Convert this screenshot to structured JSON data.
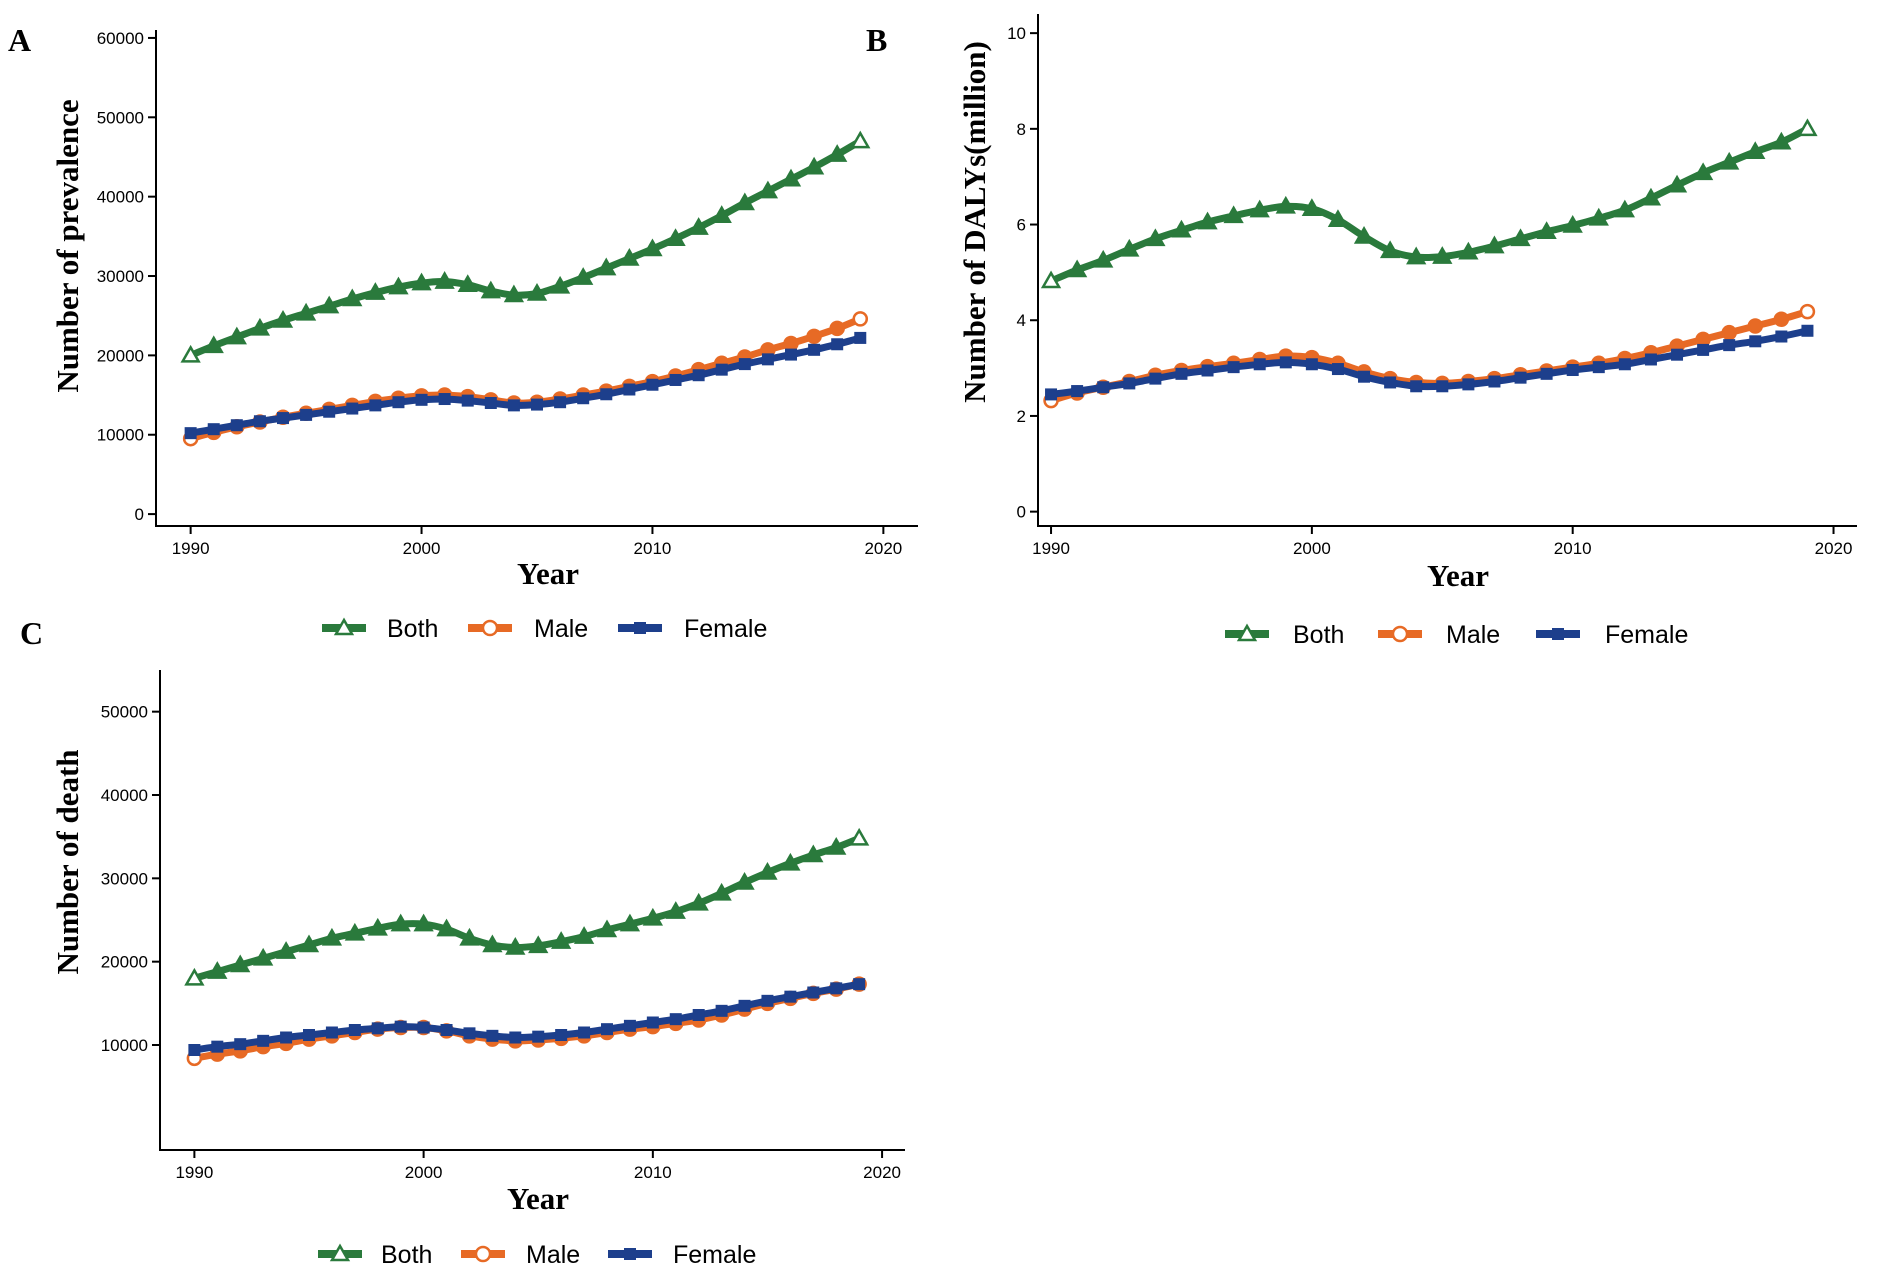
{
  "colors": {
    "both": "#2a7a3c",
    "male": "#e76a25",
    "female": "#1d3f8c"
  },
  "legend": {
    "both": "Both",
    "male": "Male",
    "female": "Female"
  },
  "chart_data": [
    {
      "panel": "A",
      "type": "line",
      "xlabel": "Year",
      "ylabel": "Number of prevalence",
      "xlim": [
        1988.5,
        2021.5
      ],
      "ylim": [
        -1500,
        61000
      ],
      "xticks": [
        1990,
        2000,
        2010,
        2020
      ],
      "xtick_labels": [
        "1990",
        "2000",
        "2010",
        "2020"
      ],
      "yticks": [
        0,
        10000,
        20000,
        30000,
        40000,
        50000,
        60000
      ],
      "ytick_labels": [
        "0",
        "10000",
        "20000",
        "30000",
        "40000",
        "50000",
        "60000"
      ],
      "x": [
        1990,
        1991,
        1992,
        1993,
        1994,
        1995,
        1996,
        1997,
        1998,
        1999,
        2000,
        2001,
        2002,
        2003,
        2004,
        2005,
        2006,
        2007,
        2008,
        2009,
        2010,
        2011,
        2012,
        2013,
        2014,
        2015,
        2016,
        2017,
        2018,
        2019
      ],
      "series": [
        {
          "key": "both",
          "name": "Both",
          "marker": "triangle",
          "values": [
            20000,
            21200,
            22300,
            23400,
            24400,
            25300,
            26200,
            27100,
            27900,
            28600,
            29100,
            29300,
            28900,
            28100,
            27600,
            27800,
            28700,
            29800,
            31000,
            32200,
            33400,
            34700,
            36100,
            37600,
            39200,
            40700,
            42200,
            43700,
            45300,
            47000
          ]
        },
        {
          "key": "male",
          "name": "Male",
          "marker": "circle",
          "values": [
            9500,
            10300,
            11000,
            11600,
            12200,
            12700,
            13200,
            13700,
            14200,
            14600,
            14900,
            15000,
            14800,
            14400,
            14000,
            14100,
            14500,
            15000,
            15500,
            16100,
            16700,
            17400,
            18200,
            19000,
            19800,
            20700,
            21500,
            22400,
            23400,
            24600
          ]
        },
        {
          "key": "female",
          "name": "Female",
          "marker": "square",
          "values": [
            10200,
            10700,
            11200,
            11700,
            12100,
            12500,
            12900,
            13300,
            13700,
            14100,
            14400,
            14500,
            14300,
            14000,
            13700,
            13800,
            14100,
            14600,
            15100,
            15700,
            16300,
            16900,
            17500,
            18200,
            18900,
            19500,
            20100,
            20700,
            21400,
            22200
          ]
        }
      ]
    },
    {
      "panel": "B",
      "type": "line",
      "xlabel": "Year",
      "ylabel": "Number of DALYs(million)",
      "xlim": [
        1989.5,
        2020.9
      ],
      "ylim": [
        -0.3,
        10.4
      ],
      "xticks": [
        1990,
        2000,
        2010,
        2020
      ],
      "xtick_labels": [
        "1990",
        "2000",
        "2010",
        "2020"
      ],
      "yticks": [
        0,
        2,
        4,
        6,
        8,
        10
      ],
      "ytick_labels": [
        "0",
        "2",
        "4",
        "6",
        "8",
        "10"
      ],
      "x": [
        1990,
        1991,
        1992,
        1993,
        1994,
        1995,
        1996,
        1997,
        1998,
        1999,
        2000,
        2001,
        2002,
        2003,
        2004,
        2005,
        2006,
        2007,
        2008,
        2009,
        2010,
        2011,
        2012,
        2013,
        2014,
        2015,
        2016,
        2017,
        2018,
        2019
      ],
      "series": [
        {
          "key": "both",
          "name": "Both",
          "marker": "triangle",
          "values": [
            4.82,
            5.05,
            5.25,
            5.48,
            5.7,
            5.88,
            6.05,
            6.18,
            6.3,
            6.38,
            6.33,
            6.1,
            5.75,
            5.45,
            5.32,
            5.33,
            5.42,
            5.55,
            5.7,
            5.85,
            5.98,
            6.13,
            6.3,
            6.55,
            6.82,
            7.08,
            7.3,
            7.52,
            7.72,
            8.0
          ]
        },
        {
          "key": "male",
          "name": "Male",
          "marker": "circle",
          "values": [
            2.32,
            2.48,
            2.6,
            2.72,
            2.85,
            2.95,
            3.03,
            3.1,
            3.18,
            3.25,
            3.22,
            3.1,
            2.92,
            2.78,
            2.7,
            2.68,
            2.72,
            2.78,
            2.86,
            2.94,
            3.02,
            3.1,
            3.2,
            3.32,
            3.46,
            3.6,
            3.74,
            3.88,
            4.02,
            4.18
          ]
        },
        {
          "key": "female",
          "name": "Female",
          "marker": "square",
          "values": [
            2.45,
            2.52,
            2.6,
            2.68,
            2.78,
            2.88,
            2.95,
            3.02,
            3.08,
            3.12,
            3.08,
            2.98,
            2.82,
            2.7,
            2.62,
            2.62,
            2.66,
            2.72,
            2.8,
            2.88,
            2.96,
            3.02,
            3.08,
            3.18,
            3.28,
            3.38,
            3.48,
            3.56,
            3.66,
            3.78
          ]
        }
      ]
    },
    {
      "panel": "C",
      "type": "line",
      "xlabel": "Year",
      "ylabel": "Number of death",
      "xlim": [
        1988.5,
        2021.0
      ],
      "ylim": [
        -2600,
        55000
      ],
      "xticks": [
        1990,
        2000,
        2010,
        2020
      ],
      "xtick_labels": [
        "1990",
        "2000",
        "2010",
        "2020"
      ],
      "yticks": [
        10000,
        20000,
        30000,
        40000,
        50000
      ],
      "ytick_labels": [
        "10000",
        "20000",
        "30000",
        "40000",
        "50000"
      ],
      "x": [
        1990,
        1991,
        1992,
        1993,
        1994,
        1995,
        1996,
        1997,
        1998,
        1999,
        2000,
        2001,
        2002,
        2003,
        2004,
        2005,
        2006,
        2007,
        2008,
        2009,
        2010,
        2011,
        2012,
        2013,
        2014,
        2015,
        2016,
        2017,
        2018,
        2019
      ],
      "series": [
        {
          "key": "both",
          "name": "Both",
          "marker": "triangle",
          "values": [
            18000,
            18800,
            19600,
            20400,
            21200,
            22000,
            22800,
            23400,
            24000,
            24500,
            24500,
            23900,
            22800,
            22000,
            21700,
            21900,
            22400,
            23000,
            23800,
            24500,
            25200,
            26000,
            27000,
            28200,
            29500,
            30700,
            31800,
            32800,
            33700,
            34800
          ]
        },
        {
          "key": "male",
          "name": "Male",
          "marker": "circle",
          "values": [
            8400,
            8900,
            9300,
            9800,
            10200,
            10700,
            11100,
            11500,
            11900,
            12100,
            12100,
            11700,
            11100,
            10700,
            10500,
            10600,
            10800,
            11100,
            11500,
            11900,
            12200,
            12600,
            13000,
            13600,
            14300,
            15000,
            15600,
            16200,
            16700,
            17300
          ]
        },
        {
          "key": "female",
          "name": "Female",
          "marker": "square",
          "values": [
            9400,
            9800,
            10100,
            10500,
            10900,
            11200,
            11500,
            11800,
            12000,
            12200,
            12100,
            11800,
            11400,
            11100,
            10900,
            11000,
            11200,
            11500,
            11900,
            12300,
            12700,
            13100,
            13600,
            14100,
            14700,
            15300,
            15800,
            16300,
            16800,
            17300
          ]
        }
      ]
    }
  ]
}
